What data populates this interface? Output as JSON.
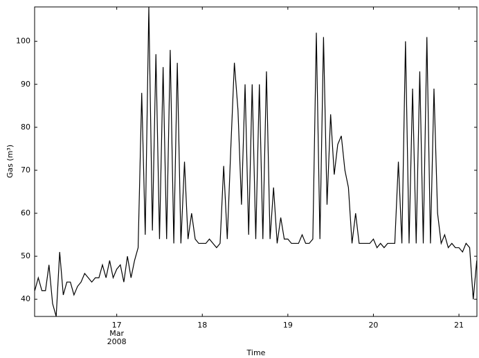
{
  "chart_data": {
    "type": "line",
    "xlabel": "Time",
    "ylabel": "Gas (m³)",
    "x_sublabel": [
      "Mar",
      "2008"
    ],
    "color": "#000000",
    "x": [
      16.042,
      16.083,
      16.125,
      16.167,
      16.208,
      16.25,
      16.292,
      16.333,
      16.375,
      16.417,
      16.458,
      16.5,
      16.542,
      16.583,
      16.625,
      16.667,
      16.708,
      16.75,
      16.792,
      16.833,
      16.875,
      16.917,
      16.958,
      17,
      17.042,
      17.083,
      17.125,
      17.167,
      17.208,
      17.25,
      17.292,
      17.333,
      17.375,
      17.417,
      17.458,
      17.5,
      17.542,
      17.583,
      17.625,
      17.667,
      17.708,
      17.75,
      17.792,
      17.833,
      17.875,
      17.917,
      17.958,
      18,
      18.042,
      18.083,
      18.125,
      18.167,
      18.208,
      18.25,
      18.292,
      18.333,
      18.375,
      18.417,
      18.458,
      18.5,
      18.542,
      18.583,
      18.625,
      18.667,
      18.708,
      18.75,
      18.792,
      18.833,
      18.875,
      18.917,
      18.958,
      19,
      19.042,
      19.083,
      19.125,
      19.167,
      19.208,
      19.25,
      19.292,
      19.333,
      19.375,
      19.417,
      19.458,
      19.5,
      19.542,
      19.583,
      19.625,
      19.667,
      19.708,
      19.75,
      19.792,
      19.833,
      19.875,
      19.917,
      19.958,
      20,
      20.042,
      20.083,
      20.125,
      20.167,
      20.208,
      20.25,
      20.292,
      20.333,
      20.375,
      20.417,
      20.458,
      20.5,
      20.542,
      20.583,
      20.625,
      20.667,
      20.708,
      20.75,
      20.792,
      20.833,
      20.875,
      20.917,
      20.958,
      21,
      21.042,
      21.083,
      21.125,
      21.167,
      21.208
    ],
    "values": [
      42,
      45,
      42,
      42,
      48,
      39,
      36,
      51,
      41,
      44,
      44,
      41,
      43,
      44,
      46,
      45,
      44,
      45,
      45,
      48,
      45,
      49,
      45,
      47,
      48,
      44,
      50,
      45,
      49,
      52,
      88,
      55,
      108,
      56,
      97,
      54,
      94,
      54,
      98,
      53,
      95,
      53,
      72,
      54,
      60,
      54,
      53,
      53,
      53,
      54,
      53,
      52,
      53,
      71,
      54,
      75,
      95,
      84,
      62,
      90,
      55,
      90,
      54,
      90,
      54,
      93,
      54,
      66,
      53,
      59,
      54,
      54,
      53,
      53,
      53,
      55,
      53,
      53,
      54,
      102,
      54,
      101,
      62,
      83,
      69,
      76,
      78,
      70,
      66,
      53,
      60,
      53,
      53,
      53,
      53,
      54,
      52,
      53,
      52,
      53,
      53,
      53,
      72,
      53,
      100,
      53,
      89,
      53,
      93,
      53,
      101,
      53,
      89,
      60,
      53,
      55,
      52,
      53,
      52,
      52,
      51,
      53,
      52,
      40,
      49
    ],
    "xlim": [
      16.04,
      21.21
    ],
    "ylim": [
      36,
      108
    ],
    "xticks": [
      17,
      18,
      19,
      20,
      21
    ],
    "yticks": [
      40,
      50,
      60,
      70,
      80,
      90,
      100
    ]
  }
}
